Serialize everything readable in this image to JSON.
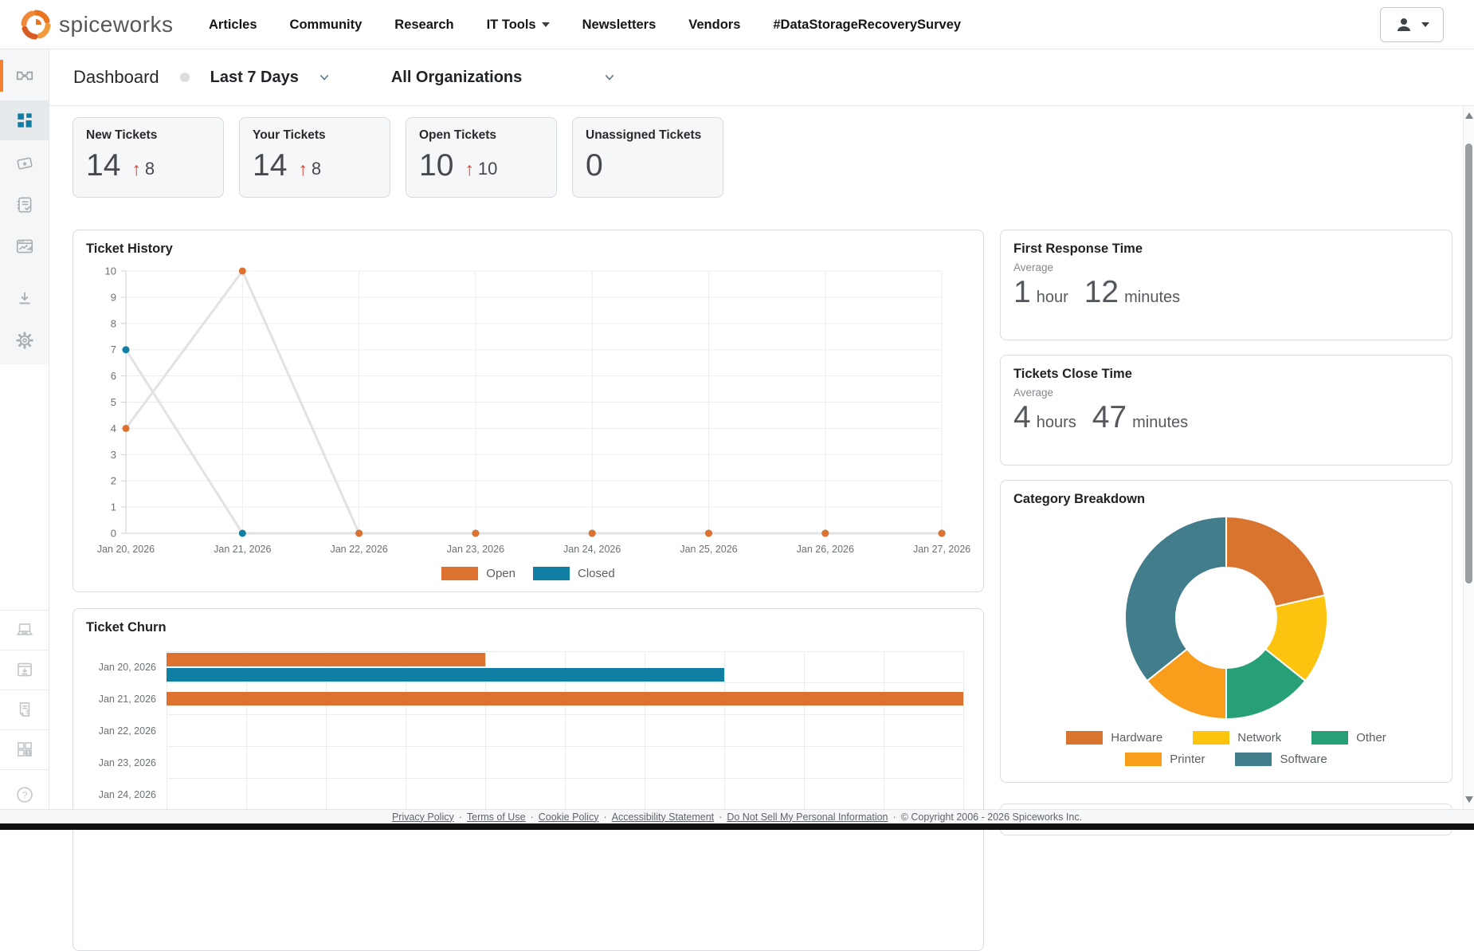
{
  "brand": {
    "name": "spiceworks"
  },
  "top_nav": {
    "items": [
      {
        "label": "Articles",
        "has_dropdown": false
      },
      {
        "label": "Community",
        "has_dropdown": false
      },
      {
        "label": "Research",
        "has_dropdown": false
      },
      {
        "label": "IT Tools",
        "has_dropdown": true
      },
      {
        "label": "Newsletters",
        "has_dropdown": false
      },
      {
        "label": "Vendors",
        "has_dropdown": false
      },
      {
        "label": "#DataStorageRecoverySurvey",
        "has_dropdown": false
      }
    ]
  },
  "toolbar": {
    "page_title": "Dashboard",
    "date_filter": "Last 7 Days",
    "org_filter": "All Organizations"
  },
  "sidebar": {
    "top_icons": [
      "tickets-icon",
      "dashboard-icon",
      "ticket-star-icon",
      "checklist-icon",
      "reports-icon",
      "download-icon",
      "gear-icon"
    ],
    "bottom_icons": [
      "laptop-icon",
      "app-download-icon",
      "invoice-icon",
      "apps-alert-icon",
      "help-icon"
    ],
    "active_item": "dashboard"
  },
  "stats": [
    {
      "label": "New Tickets",
      "value": "14",
      "delta": "8"
    },
    {
      "label": "Your Tickets",
      "value": "14",
      "delta": "8"
    },
    {
      "label": "Open Tickets",
      "value": "10",
      "delta": "10"
    },
    {
      "label": "Unassigned Tickets",
      "value": "0",
      "delta": null
    }
  ],
  "metrics": {
    "first_response": {
      "title": "First Response Time",
      "sublabel": "Average",
      "value1": "1",
      "unit1": "hour",
      "value2": "12",
      "unit2": "minutes"
    },
    "close_time": {
      "title": "Tickets Close Time",
      "sublabel": "Average",
      "value1": "4",
      "unit1": "hours",
      "value2": "47",
      "unit2": "minutes"
    }
  },
  "colors": {
    "open_orange": "#dd7230",
    "closed_teal": "#0f7fa4",
    "accent_orange": "#f5812e",
    "delta_red": "#e23a2a",
    "gridline": "#ededed",
    "axis": "#cdd0d3",
    "line_gray": "#e2e2e2"
  },
  "chart_data": [
    {
      "id": "ticket_history",
      "type": "line",
      "title": "Ticket History",
      "x": [
        "Jan 20, 2026",
        "Jan 21, 2026",
        "Jan 22, 2026",
        "Jan 23, 2026",
        "Jan 24, 2026",
        "Jan 25, 2026",
        "Jan 26, 2026",
        "Jan 27, 2026"
      ],
      "ylim": [
        0,
        10
      ],
      "ytick_step": 1,
      "grid": true,
      "legend_position": "bottom",
      "series": [
        {
          "name": "Open",
          "color": "#dd7230",
          "values": [
            4,
            10,
            0,
            0,
            0,
            0,
            0,
            0
          ]
        },
        {
          "name": "Closed",
          "color": "#0f7fa4",
          "values": [
            7,
            0,
            0,
            0,
            0,
            0,
            0,
            0
          ]
        }
      ]
    },
    {
      "id": "ticket_churn",
      "type": "bar",
      "orientation": "horizontal",
      "title": "Ticket Churn",
      "categories": [
        "Jan 20, 2026",
        "Jan 21, 2026",
        "Jan 22, 2026",
        "Jan 23, 2026",
        "Jan 24, 2026"
      ],
      "xlim": [
        0,
        10
      ],
      "grid": true,
      "series": [
        {
          "name": "Open",
          "color": "#dd7230",
          "values": [
            4,
            10,
            0,
            0,
            0
          ]
        },
        {
          "name": "Closed",
          "color": "#0f7fa4",
          "values": [
            7,
            0,
            0,
            0,
            0
          ]
        }
      ]
    },
    {
      "id": "category_breakdown",
      "type": "donut",
      "title": "Category Breakdown",
      "slices": [
        {
          "label": "Hardware",
          "value": 3,
          "color": "#d9742f"
        },
        {
          "label": "Network",
          "value": 2,
          "color": "#fcc40f"
        },
        {
          "label": "Other",
          "value": 2,
          "color": "#28a077"
        },
        {
          "label": "Printer",
          "value": 2,
          "color": "#f89d1c"
        },
        {
          "label": "Software",
          "value": 5,
          "color": "#417d8a"
        }
      ]
    }
  ],
  "footer": {
    "links": [
      "Privacy Policy",
      "Terms of Use",
      "Cookie Policy",
      "Accessibility Statement",
      "Do Not Sell My Personal Information"
    ],
    "separator": "·",
    "copyright": "© Copyright 2006 - 2026 Spiceworks Inc."
  }
}
